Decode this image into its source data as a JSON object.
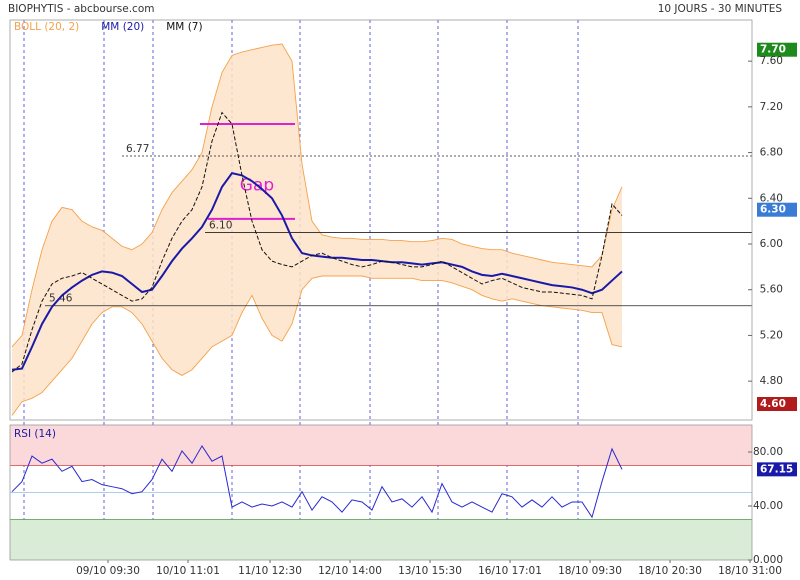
{
  "chart_data": [
    {
      "type": "line",
      "title": "BIOPHYTIS - abcbourse.com",
      "subtitle": "10 JOURS - 30 MINUTES",
      "xlim": [
        -0.2,
        74
      ],
      "ylim": [
        4.46,
        7.96
      ],
      "yticks": [
        {
          "value": 4.8,
          "label": "4.80"
        },
        {
          "value": 5.2,
          "label": "5.20"
        },
        {
          "value": 5.6,
          "label": "5.60"
        },
        {
          "value": 6.0,
          "label": "6.00"
        },
        {
          "value": 6.4,
          "label": "6.40"
        },
        {
          "value": 6.8,
          "label": "6.80"
        },
        {
          "value": 7.2,
          "label": "7.20"
        },
        {
          "value": 7.6,
          "label": "7.60"
        }
      ],
      "series": [
        {
          "name": "BOLL (20, 2)",
          "color": "#f5a14a",
          "role": "band",
          "upper": [
            5.1,
            5.2,
            5.6,
            5.95,
            6.2,
            6.32,
            6.3,
            6.2,
            6.15,
            6.12,
            6.05,
            5.98,
            5.95,
            6.0,
            6.1,
            6.3,
            6.45,
            6.55,
            6.65,
            6.8,
            7.2,
            7.5,
            7.65,
            7.68,
            7.7,
            7.72,
            7.74,
            7.75,
            7.6,
            6.7,
            6.2,
            6.08,
            6.06,
            6.05,
            6.05,
            6.04,
            6.04,
            6.04,
            6.03,
            6.03,
            6.02,
            6.02,
            6.03,
            6.05,
            6.04,
            6.0,
            5.98,
            5.96,
            5.95,
            5.95,
            5.92,
            5.9,
            5.88,
            5.86,
            5.84,
            5.83,
            5.82,
            5.81,
            5.8,
            5.9,
            6.3,
            6.5
          ],
          "lower": [
            4.5,
            4.62,
            4.65,
            4.7,
            4.8,
            4.9,
            5.0,
            5.15,
            5.3,
            5.4,
            5.45,
            5.45,
            5.4,
            5.3,
            5.15,
            5.0,
            4.9,
            4.85,
            4.9,
            5.0,
            5.1,
            5.15,
            5.2,
            5.4,
            5.55,
            5.35,
            5.2,
            5.15,
            5.3,
            5.6,
            5.7,
            5.72,
            5.72,
            5.72,
            5.72,
            5.72,
            5.7,
            5.7,
            5.7,
            5.7,
            5.7,
            5.68,
            5.68,
            5.68,
            5.66,
            5.63,
            5.6,
            5.55,
            5.52,
            5.5,
            5.52,
            5.5,
            5.48,
            5.46,
            5.45,
            5.44,
            5.43,
            5.42,
            5.4,
            5.4,
            5.12,
            5.1
          ]
        },
        {
          "name": "MM (20)",
          "color": "#1a1aa8",
          "values": [
            4.9,
            4.91,
            5.1,
            5.3,
            5.45,
            5.55,
            5.62,
            5.68,
            5.73,
            5.76,
            5.75,
            5.72,
            5.65,
            5.58,
            5.6,
            5.72,
            5.85,
            5.96,
            6.05,
            6.15,
            6.3,
            6.5,
            6.62,
            6.6,
            6.55,
            6.48,
            6.4,
            6.25,
            6.05,
            5.92,
            5.9,
            5.89,
            5.88,
            5.88,
            5.87,
            5.86,
            5.86,
            5.85,
            5.84,
            5.84,
            5.83,
            5.82,
            5.83,
            5.84,
            5.82,
            5.8,
            5.76,
            5.73,
            5.72,
            5.74,
            5.72,
            5.7,
            5.68,
            5.66,
            5.64,
            5.63,
            5.62,
            5.6,
            5.57,
            5.6,
            5.68,
            5.76
          ]
        },
        {
          "name": "MM (7)",
          "color": "#111111",
          "dashed": true,
          "values": [
            4.88,
            4.95,
            5.25,
            5.5,
            5.65,
            5.7,
            5.72,
            5.75,
            5.7,
            5.65,
            5.6,
            5.55,
            5.5,
            5.52,
            5.62,
            5.85,
            6.05,
            6.2,
            6.3,
            6.5,
            6.9,
            7.15,
            7.05,
            6.6,
            6.2,
            5.95,
            5.85,
            5.82,
            5.8,
            5.85,
            5.9,
            5.92,
            5.88,
            5.85,
            5.82,
            5.8,
            5.82,
            5.85,
            5.84,
            5.82,
            5.8,
            5.8,
            5.82,
            5.85,
            5.8,
            5.75,
            5.7,
            5.65,
            5.68,
            5.7,
            5.66,
            5.62,
            5.6,
            5.58,
            5.58,
            5.57,
            5.56,
            5.55,
            5.52,
            5.9,
            6.35,
            6.25
          ]
        }
      ],
      "levels": [
        {
          "value": 6.77,
          "label": "6.77",
          "dashed": true
        },
        {
          "value": 6.1,
          "label": "6.10"
        },
        {
          "value": 5.46,
          "label": "5.46"
        }
      ],
      "gap": {
        "label": "Gap",
        "top": 7.05,
        "bottom": 6.22,
        "color": "#e020d0"
      },
      "price_tags": [
        {
          "value": 7.7,
          "label": "7.70",
          "color": "#1e8a1e"
        },
        {
          "value": 6.3,
          "label": "6.30",
          "color": "#3a7bd5"
        },
        {
          "value": 4.6,
          "label": "4.60",
          "color": "#b01c1c"
        }
      ]
    },
    {
      "type": "line",
      "title": "RSI (14)",
      "xlim": [
        -0.2,
        74
      ],
      "ylim": [
        0,
        100
      ],
      "yticks": [
        {
          "value": 0,
          "label": "0.000"
        },
        {
          "value": 40,
          "label": "40.00"
        },
        {
          "value": 80,
          "label": "80.00"
        }
      ],
      "xticks": [
        {
          "value": 9.6,
          "label": "09/10 09:30"
        },
        {
          "value": 17.6,
          "label": "10/10 11:01"
        },
        {
          "value": 25.8,
          "label": "11/10 12:30"
        },
        {
          "value": 33.8,
          "label": "12/10 14:00"
        },
        {
          "value": 41.8,
          "label": "13/10 15:30"
        },
        {
          "value": 49.8,
          "label": "16/10 17:01"
        },
        {
          "value": 57.8,
          "label": "18/10 09:30"
        },
        {
          "value": 65.8,
          "label": "18/10 20:30"
        },
        {
          "value": 73.8,
          "label": "18/10 31:00"
        }
      ],
      "zones": {
        "overbought": 70,
        "mid": 50,
        "oversold": 30
      },
      "series": [
        {
          "name": "RSI",
          "color": "#2a2ad0",
          "values": [
            50.6,
            58.1,
            77,
            71.7,
            74.7,
            65.7,
            69.4,
            58.1,
            59.6,
            55.8,
            54.3,
            52.8,
            49.1,
            50.6,
            59.6,
            74.7,
            65.7,
            80.8,
            71.7,
            84.5,
            73.2,
            77,
            39.2,
            43,
            39.2,
            41.5,
            40,
            43,
            39.2,
            50.6,
            37,
            46.8,
            43,
            35.5,
            44.5,
            43,
            37,
            54.3,
            43,
            45.3,
            39.2,
            46.8,
            35.5,
            56.6,
            43,
            39.2,
            43,
            39.2,
            35.5,
            49.1,
            46.8,
            39.2,
            44.5,
            39.2,
            46.8,
            39.2,
            43,
            43,
            31.7,
            58.1,
            82.3,
            67.15
          ]
        }
      ]
    }
  ]
}
